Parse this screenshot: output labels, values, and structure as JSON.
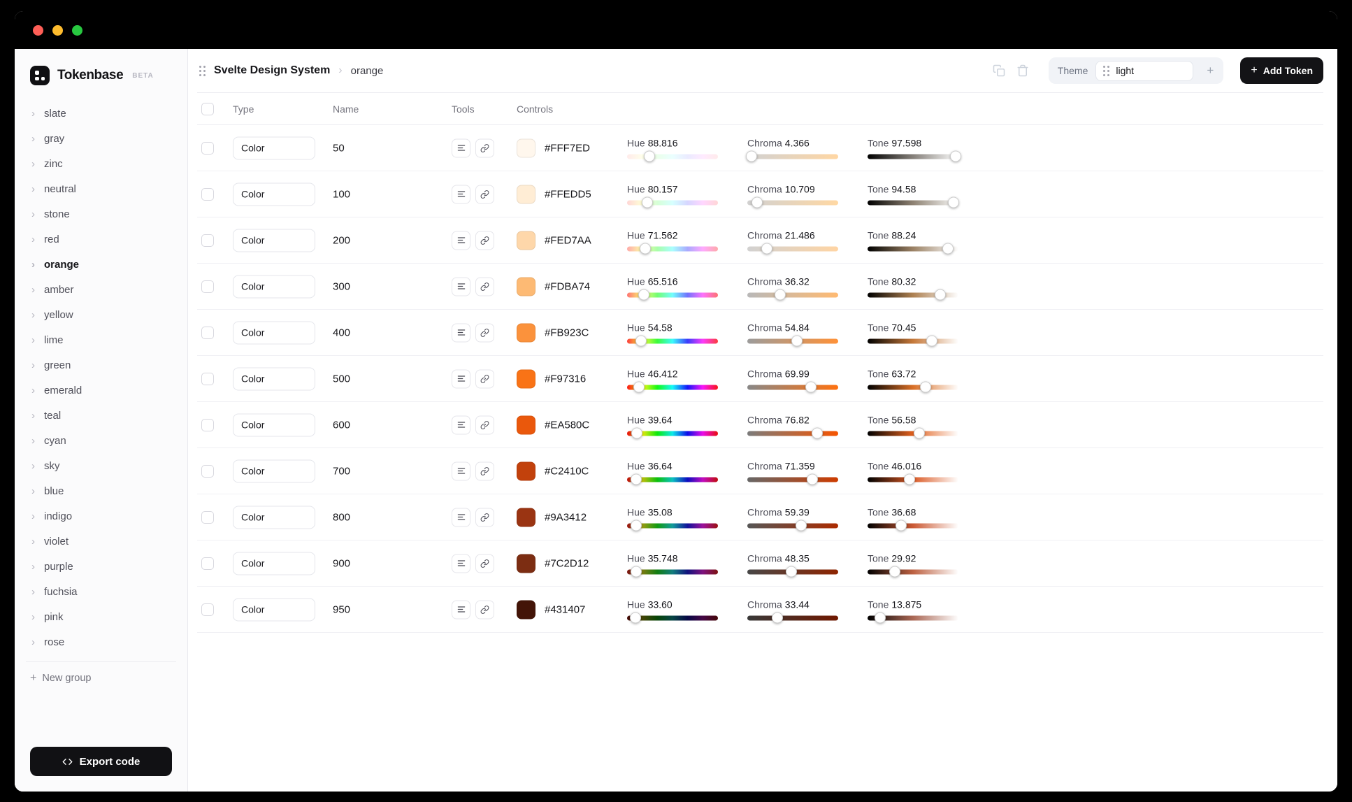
{
  "icons": {
    "plus": "+",
    "chevron_right": "›"
  },
  "colors": {
    "traffic_red": "#FF5F57",
    "traffic_yellow": "#FEBC2E",
    "traffic_green": "#28C840",
    "accent_dark": "#131316"
  },
  "sidebar": {
    "brand": "Tokenbase",
    "beta_badge": "BETA",
    "groups": [
      {
        "label": "slate"
      },
      {
        "label": "gray"
      },
      {
        "label": "zinc"
      },
      {
        "label": "neutral"
      },
      {
        "label": "stone"
      },
      {
        "label": "red"
      },
      {
        "label": "orange",
        "active": true
      },
      {
        "label": "amber"
      },
      {
        "label": "yellow"
      },
      {
        "label": "lime"
      },
      {
        "label": "green"
      },
      {
        "label": "emerald"
      },
      {
        "label": "teal"
      },
      {
        "label": "cyan"
      },
      {
        "label": "sky"
      },
      {
        "label": "blue"
      },
      {
        "label": "indigo"
      },
      {
        "label": "violet"
      },
      {
        "label": "purple"
      },
      {
        "label": "fuchsia"
      },
      {
        "label": "pink"
      },
      {
        "label": "rose"
      }
    ],
    "new_group_label": "New group",
    "export_button_label": "Export code"
  },
  "header": {
    "breadcrumb": {
      "project": "Svelte Design System",
      "separator": "›",
      "current": "orange"
    },
    "theme_label": "Theme",
    "theme_selected": "light",
    "add_token_label": "Add Token"
  },
  "table": {
    "columns": {
      "type": "Type",
      "name": "Name",
      "tools": "Tools",
      "controls": "Controls"
    },
    "slider_labels": {
      "hue": "Hue",
      "chroma": "Chroma",
      "tone": "Tone"
    },
    "rows": [
      {
        "type": "Color",
        "name": "50",
        "hex": "#FFF7ED",
        "hue": "88.816",
        "chroma": "4.366",
        "tone": "97.598"
      },
      {
        "type": "Color",
        "name": "100",
        "hex": "#FFEDD5",
        "hue": "80.157",
        "chroma": "10.709",
        "tone": "94.58"
      },
      {
        "type": "Color",
        "name": "200",
        "hex": "#FED7AA",
        "hue": "71.562",
        "chroma": "21.486",
        "tone": "88.24"
      },
      {
        "type": "Color",
        "name": "300",
        "hex": "#FDBA74",
        "hue": "65.516",
        "chroma": "36.32",
        "tone": "80.32"
      },
      {
        "type": "Color",
        "name": "400",
        "hex": "#FB923C",
        "hue": "54.58",
        "chroma": "54.84",
        "tone": "70.45"
      },
      {
        "type": "Color",
        "name": "500",
        "hex": "#F97316",
        "hue": "46.412",
        "chroma": "69.99",
        "tone": "63.72"
      },
      {
        "type": "Color",
        "name": "600",
        "hex": "#EA580C",
        "hue": "39.64",
        "chroma": "76.82",
        "tone": "56.58"
      },
      {
        "type": "Color",
        "name": "700",
        "hex": "#C2410C",
        "hue": "36.64",
        "chroma": "71.359",
        "tone": "46.016"
      },
      {
        "type": "Color",
        "name": "800",
        "hex": "#9A3412",
        "hue": "35.08",
        "chroma": "59.39",
        "tone": "36.68"
      },
      {
        "type": "Color",
        "name": "900",
        "hex": "#7C2D12",
        "hue": "35.748",
        "chroma": "48.35",
        "tone": "29.92"
      },
      {
        "type": "Color",
        "name": "950",
        "hex": "#431407",
        "hue": "33.60",
        "chroma": "33.44",
        "tone": "13.875"
      }
    ]
  }
}
